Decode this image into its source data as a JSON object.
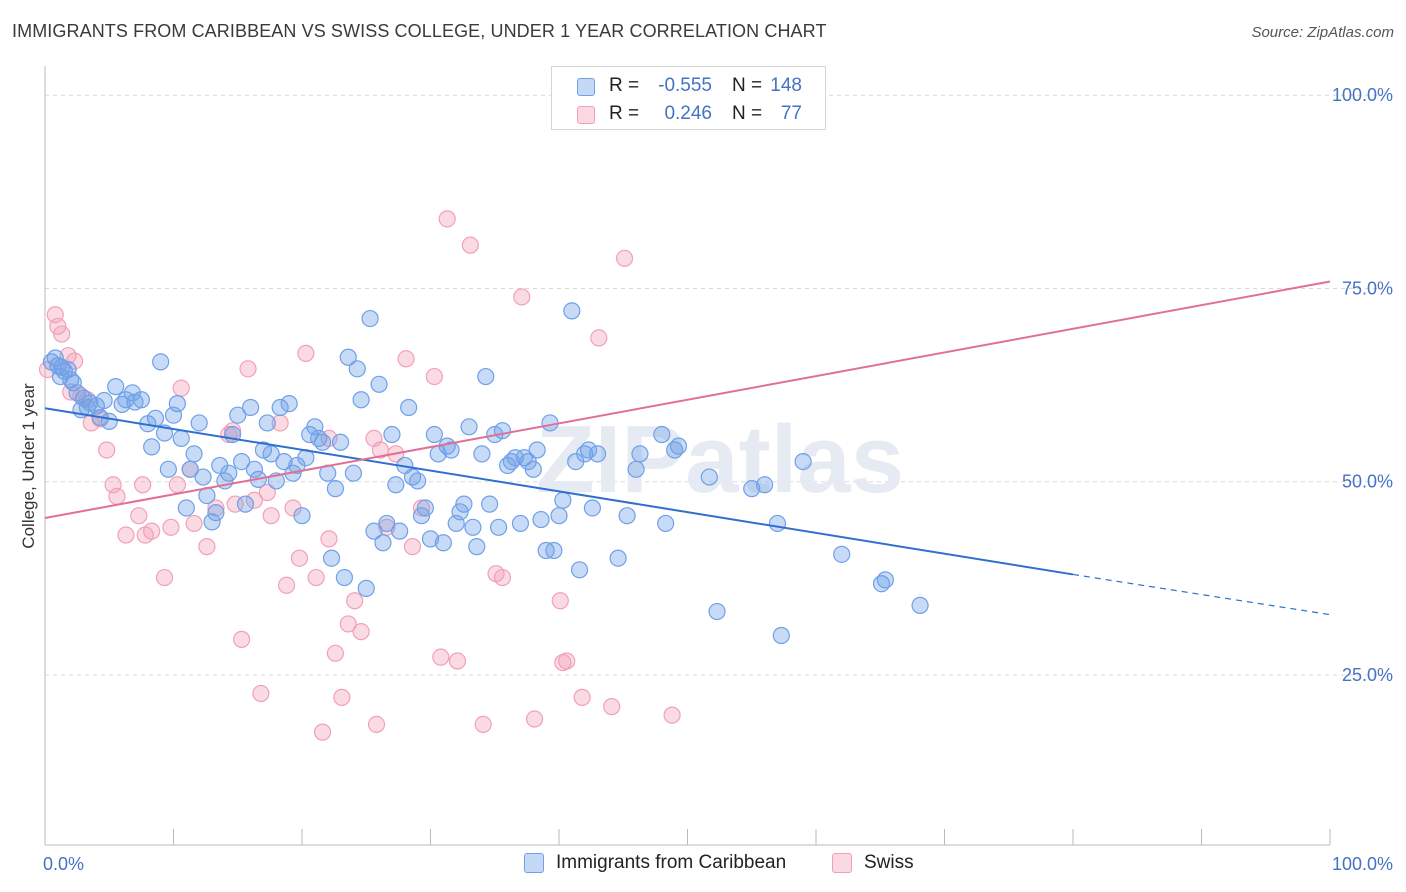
{
  "title": "IMMIGRANTS FROM CARIBBEAN VS SWISS COLLEGE, UNDER 1 YEAR CORRELATION CHART",
  "source": "Source: ZipAtlas.com",
  "watermark": "ZIPatlas",
  "legend": {
    "rows": [
      {
        "r_label": "R =",
        "r_value": "-0.555",
        "n_label": "N =",
        "n_value": "148",
        "color": "#6fa0e8"
      },
      {
        "r_label": "R =",
        "r_value": "0.246",
        "n_label": "N =",
        "n_value": "77",
        "color": "#f2a0b8"
      }
    ]
  },
  "bottom_legend": [
    "Immigrants from Caribbean",
    "Swiss"
  ],
  "chart_data": {
    "type": "scatter",
    "xlabel": "",
    "ylabel": "College, Under 1 year",
    "xlim": [
      0,
      100
    ],
    "ylim": [
      3,
      103
    ],
    "x_tick_labels": [
      "0.0%",
      "100.0%"
    ],
    "y_ticks": [
      25,
      50,
      75,
      100
    ],
    "y_tick_labels": [
      "25.0%",
      "50.0%",
      "75.0%",
      "100.0%"
    ],
    "grid": "horizontal dashed",
    "legend_position": "top-center",
    "series": [
      {
        "name": "Immigrants from Caribbean",
        "color": "#6fa0e8",
        "line_color": "#2f6fd0",
        "trend": {
          "x0": 0,
          "y0": 59.5,
          "x1": 80,
          "y1": 38.0,
          "dash_to_x": 100,
          "dash_to_y": 32.8
        },
        "points": [
          [
            0.5,
            65.5
          ],
          [
            0.8,
            66
          ],
          [
            1,
            65
          ],
          [
            1.3,
            64.8
          ],
          [
            1.5,
            64.3
          ],
          [
            1.8,
            64.5
          ],
          [
            2,
            63.2
          ],
          [
            2.2,
            62.8
          ],
          [
            2.5,
            61.5
          ],
          [
            2.8,
            59.3
          ],
          [
            3,
            60.8
          ],
          [
            3.5,
            60.2
          ],
          [
            4,
            59.8
          ],
          [
            4.3,
            58.3
          ],
          [
            4.6,
            60.5
          ],
          [
            5,
            57.8
          ],
          [
            5.5,
            62.3
          ],
          [
            6,
            60
          ],
          [
            6.3,
            60.6
          ],
          [
            6.8,
            61.5
          ],
          [
            7,
            60.3
          ],
          [
            7.5,
            60.6
          ],
          [
            8,
            57.5
          ],
          [
            8.3,
            54.5
          ],
          [
            8.6,
            58.2
          ],
          [
            9,
            65.5
          ],
          [
            9.3,
            56.3
          ],
          [
            9.6,
            51.6
          ],
          [
            10,
            58.6
          ],
          [
            10.3,
            60.1
          ],
          [
            10.6,
            55.6
          ],
          [
            11,
            46.6
          ],
          [
            11.3,
            51.6
          ],
          [
            11.6,
            53.6
          ],
          [
            12,
            57.6
          ],
          [
            12.3,
            50.6
          ],
          [
            12.6,
            48.2
          ],
          [
            13,
            44.8
          ],
          [
            13.3,
            46
          ],
          [
            13.6,
            52.1
          ],
          [
            14,
            50.1
          ],
          [
            14.3,
            51.1
          ],
          [
            14.6,
            56.1
          ],
          [
            15,
            58.6
          ],
          [
            15.3,
            52.6
          ],
          [
            15.6,
            47.1
          ],
          [
            16,
            59.6
          ],
          [
            16.3,
            51.6
          ],
          [
            16.6,
            50.3
          ],
          [
            17,
            54.1
          ],
          [
            17.3,
            57.6
          ],
          [
            17.6,
            53.6
          ],
          [
            18,
            50.1
          ],
          [
            18.3,
            59.6
          ],
          [
            18.6,
            52.6
          ],
          [
            19,
            60.1
          ],
          [
            19.3,
            51.1
          ],
          [
            19.6,
            52.1
          ],
          [
            20,
            45.6
          ],
          [
            20.3,
            53.1
          ],
          [
            20.6,
            56.1
          ],
          [
            21,
            57.1
          ],
          [
            21.3,
            55.6
          ],
          [
            21.6,
            55.1
          ],
          [
            22,
            51.1
          ],
          [
            22.3,
            40.1
          ],
          [
            22.6,
            49.1
          ],
          [
            23,
            55.1
          ],
          [
            23.3,
            37.6
          ],
          [
            23.6,
            66.1
          ],
          [
            24,
            51.1
          ],
          [
            24.3,
            64.6
          ],
          [
            24.6,
            60.6
          ],
          [
            25,
            36.2
          ],
          [
            25.3,
            71.1
          ],
          [
            25.6,
            43.6
          ],
          [
            26,
            62.6
          ],
          [
            26.3,
            42.1
          ],
          [
            26.6,
            44.6
          ],
          [
            27,
            56.1
          ],
          [
            27.3,
            49.6
          ],
          [
            27.6,
            43.6
          ],
          [
            28,
            52.1
          ],
          [
            28.3,
            59.6
          ],
          [
            28.6,
            50.6
          ],
          [
            29,
            50.1
          ],
          [
            29.3,
            45.6
          ],
          [
            29.6,
            46.6
          ],
          [
            30,
            42.6
          ],
          [
            30.3,
            56.1
          ],
          [
            30.6,
            53.6
          ],
          [
            31,
            42.1
          ],
          [
            31.3,
            54.6
          ],
          [
            31.6,
            54.1
          ],
          [
            32,
            44.6
          ],
          [
            32.3,
            46.1
          ],
          [
            32.6,
            47.1
          ],
          [
            33,
            57.1
          ],
          [
            33.3,
            44.1
          ],
          [
            33.6,
            41.6
          ],
          [
            34,
            53.6
          ],
          [
            34.3,
            63.6
          ],
          [
            34.6,
            47.1
          ],
          [
            35,
            56.1
          ],
          [
            35.3,
            44.1
          ],
          [
            35.6,
            56.6
          ],
          [
            36,
            52.1
          ],
          [
            36.3,
            52.6
          ],
          [
            36.6,
            53.1
          ],
          [
            37,
            44.6
          ],
          [
            37.3,
            53.1
          ],
          [
            37.6,
            52.6
          ],
          [
            38,
            51.6
          ],
          [
            38.3,
            54.1
          ],
          [
            38.6,
            45.1
          ],
          [
            39,
            41.1
          ],
          [
            39.3,
            57.6
          ],
          [
            39.6,
            41.1
          ],
          [
            40,
            45.6
          ],
          [
            40.3,
            47.6
          ],
          [
            41,
            72.1
          ],
          [
            41.3,
            52.6
          ],
          [
            41.6,
            38.6
          ],
          [
            42,
            53.6
          ],
          [
            42.3,
            54.1
          ],
          [
            42.6,
            46.6
          ],
          [
            43,
            53.6
          ],
          [
            44.6,
            40.1
          ],
          [
            45.3,
            45.6
          ],
          [
            46,
            51.6
          ],
          [
            46.3,
            53.6
          ],
          [
            48,
            56.1
          ],
          [
            48.3,
            44.6
          ],
          [
            49,
            54.1
          ],
          [
            49.3,
            54.6
          ],
          [
            51.7,
            50.6
          ],
          [
            52.3,
            33.2
          ],
          [
            55,
            49.1
          ],
          [
            56,
            49.6
          ],
          [
            57,
            44.6
          ],
          [
            57.3,
            30.1
          ],
          [
            59,
            52.6
          ],
          [
            62,
            40.6
          ],
          [
            65.1,
            36.8
          ],
          [
            65.4,
            37.3
          ],
          [
            68.1,
            34.0
          ],
          [
            1.2,
            63.6
          ],
          [
            3.3,
            59.6
          ]
        ]
      },
      {
        "name": "Swiss",
        "color": "#f2a0b8",
        "line_color": "#e07095",
        "trend": {
          "x0": 0,
          "y0": 45.3,
          "x1": 100,
          "y1": 75.9
        },
        "points": [
          [
            0.2,
            64.5
          ],
          [
            0.8,
            71.6
          ],
          [
            1,
            70.1
          ],
          [
            1.3,
            69.1
          ],
          [
            1.8,
            66.3
          ],
          [
            2.3,
            65.6
          ],
          [
            2.8,
            61.1
          ],
          [
            3.3,
            60.6
          ],
          [
            3.6,
            57.6
          ],
          [
            4.3,
            58.1
          ],
          [
            4.8,
            54.1
          ],
          [
            5.3,
            49.6
          ],
          [
            5.6,
            48.1
          ],
          [
            6.3,
            43.1
          ],
          [
            7.3,
            45.6
          ],
          [
            7.6,
            49.6
          ],
          [
            7.8,
            43.1
          ],
          [
            8.3,
            43.6
          ],
          [
            9.3,
            37.6
          ],
          [
            9.8,
            44.1
          ],
          [
            10.3,
            49.6
          ],
          [
            10.6,
            62.1
          ],
          [
            11.3,
            51.6
          ],
          [
            11.6,
            44.6
          ],
          [
            12.6,
            41.6
          ],
          [
            13.3,
            46.6
          ],
          [
            14.3,
            56.1
          ],
          [
            14.6,
            56.6
          ],
          [
            14.8,
            47.1
          ],
          [
            15.3,
            29.6
          ],
          [
            15.8,
            64.6
          ],
          [
            16.3,
            47.6
          ],
          [
            16.8,
            22.6
          ],
          [
            17.3,
            48.6
          ],
          [
            17.6,
            45.6
          ],
          [
            18.3,
            57.6
          ],
          [
            18.8,
            36.6
          ],
          [
            19.3,
            46.6
          ],
          [
            19.8,
            40.1
          ],
          [
            20.3,
            66.6
          ],
          [
            21.1,
            37.6
          ],
          [
            21.6,
            17.6
          ],
          [
            22.1,
            55.6
          ],
          [
            22.6,
            27.8
          ],
          [
            23.1,
            22.1
          ],
          [
            23.6,
            31.6
          ],
          [
            24.1,
            34.6
          ],
          [
            24.6,
            30.6
          ],
          [
            25.6,
            55.6
          ],
          [
            25.8,
            18.6
          ],
          [
            26.1,
            54.1
          ],
          [
            26.6,
            44.1
          ],
          [
            27.3,
            53.6
          ],
          [
            28.1,
            65.9
          ],
          [
            28.6,
            41.6
          ],
          [
            29.3,
            46.6
          ],
          [
            30.3,
            63.6
          ],
          [
            30.8,
            27.3
          ],
          [
            31.3,
            84.0
          ],
          [
            32.1,
            26.8
          ],
          [
            33.1,
            80.6
          ],
          [
            34.1,
            18.6
          ],
          [
            35.1,
            38.1
          ],
          [
            35.6,
            37.6
          ],
          [
            37.1,
            73.9
          ],
          [
            38.1,
            19.3
          ],
          [
            40.1,
            34.6
          ],
          [
            40.6,
            26.8
          ],
          [
            43.1,
            68.6
          ],
          [
            44.1,
            20.9
          ],
          [
            45.1,
            78.9
          ],
          [
            50.6,
            99.6
          ],
          [
            2.0,
            61.6
          ],
          [
            22.1,
            42.6
          ],
          [
            40.3,
            26.6
          ],
          [
            41.8,
            22.1
          ],
          [
            48.8,
            19.8
          ]
        ]
      }
    ]
  }
}
